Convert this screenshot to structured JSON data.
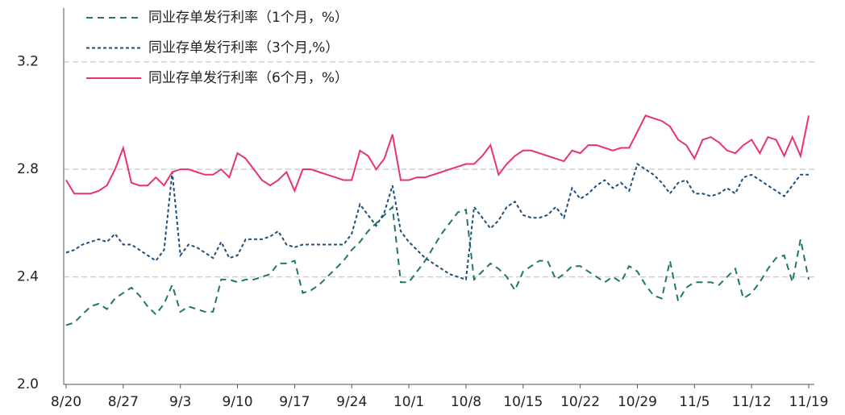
{
  "chart_data": {
    "type": "line",
    "categories": [
      "8/20",
      null,
      null,
      null,
      null,
      null,
      null,
      "8/27",
      null,
      null,
      null,
      null,
      null,
      null,
      "9/3",
      null,
      null,
      null,
      null,
      null,
      null,
      "9/10",
      null,
      null,
      null,
      null,
      null,
      null,
      "9/17",
      null,
      null,
      null,
      null,
      null,
      null,
      "9/24",
      null,
      null,
      null,
      null,
      null,
      null,
      "10/1",
      null,
      null,
      null,
      null,
      null,
      null,
      "10/8",
      null,
      null,
      null,
      null,
      null,
      null,
      "10/15",
      null,
      null,
      null,
      null,
      null,
      null,
      "10/22",
      null,
      null,
      null,
      null,
      null,
      null,
      "10/29",
      null,
      null,
      null,
      null,
      null,
      null,
      "11/5",
      null,
      null,
      null,
      null,
      null,
      null,
      "11/12",
      null,
      null,
      null,
      null,
      null,
      null,
      "11/19"
    ],
    "series": [
      {
        "name": "同业存单发行利率（1个月，%）",
        "color": "#1e7a5a",
        "dash": "8,6",
        "values": [
          2.22,
          2.23,
          2.26,
          2.29,
          2.3,
          2.28,
          2.32,
          2.34,
          2.36,
          2.33,
          2.29,
          2.26,
          2.3,
          2.37,
          2.27,
          2.29,
          2.28,
          2.27,
          2.27,
          2.39,
          2.39,
          2.38,
          2.39,
          2.39,
          2.4,
          2.41,
          2.45,
          2.45,
          2.46,
          2.34,
          2.35,
          2.37,
          2.4,
          2.43,
          2.46,
          2.5,
          2.53,
          2.57,
          2.6,
          2.63,
          2.66,
          2.38,
          2.38,
          2.42,
          2.46,
          2.51,
          2.56,
          2.6,
          2.64,
          2.65,
          2.39,
          2.42,
          2.45,
          2.43,
          2.4,
          2.35,
          2.42,
          2.44,
          2.46,
          2.46,
          2.39,
          2.41,
          2.44,
          2.44,
          2.42,
          2.4,
          2.38,
          2.4,
          2.38,
          2.44,
          2.42,
          2.37,
          2.33,
          2.32,
          2.46,
          2.31,
          2.36,
          2.38,
          2.38,
          2.38,
          2.37,
          2.4,
          2.43,
          2.32,
          2.34,
          2.38,
          2.43,
          2.47,
          2.48,
          2.38,
          2.54,
          2.39
        ]
      },
      {
        "name": "同业存单发行利率（3个月,%）",
        "color": "#1f4e79",
        "dash": "4,3",
        "values": [
          2.49,
          2.5,
          2.52,
          2.53,
          2.54,
          2.53,
          2.56,
          2.52,
          2.52,
          2.5,
          2.48,
          2.46,
          2.5,
          2.79,
          2.48,
          2.52,
          2.51,
          2.49,
          2.47,
          2.53,
          2.47,
          2.48,
          2.54,
          2.54,
          2.54,
          2.55,
          2.57,
          2.52,
          2.51,
          2.52,
          2.52,
          2.52,
          2.52,
          2.52,
          2.52,
          2.56,
          2.67,
          2.63,
          2.59,
          2.64,
          2.74,
          2.57,
          2.53,
          2.5,
          2.47,
          2.45,
          2.43,
          2.41,
          2.4,
          2.39,
          2.66,
          2.62,
          2.58,
          2.61,
          2.66,
          2.68,
          2.63,
          2.62,
          2.62,
          2.63,
          2.66,
          2.62,
          2.73,
          2.69,
          2.71,
          2.74,
          2.76,
          2.73,
          2.75,
          2.72,
          2.82,
          2.8,
          2.78,
          2.75,
          2.71,
          2.75,
          2.76,
          2.71,
          2.71,
          2.7,
          2.71,
          2.73,
          2.71,
          2.77,
          2.78,
          2.76,
          2.74,
          2.72,
          2.7,
          2.74,
          2.78,
          2.78
        ]
      },
      {
        "name": "同业存单发行利率（6个月，%）",
        "color": "#e8336b",
        "dash": "none",
        "values": [
          2.76,
          2.71,
          2.71,
          2.71,
          2.72,
          2.74,
          2.8,
          2.88,
          2.75,
          2.74,
          2.74,
          2.77,
          2.74,
          2.79,
          2.8,
          2.8,
          2.79,
          2.78,
          2.78,
          2.8,
          2.77,
          2.86,
          2.84,
          2.8,
          2.76,
          2.74,
          2.76,
          2.79,
          2.72,
          2.8,
          2.8,
          2.79,
          2.78,
          2.77,
          2.76,
          2.76,
          2.87,
          2.85,
          2.8,
          2.84,
          2.93,
          2.76,
          2.76,
          2.77,
          2.77,
          2.78,
          2.79,
          2.8,
          2.81,
          2.82,
          2.82,
          2.85,
          2.89,
          2.78,
          2.82,
          2.85,
          2.87,
          2.87,
          2.86,
          2.85,
          2.84,
          2.83,
          2.87,
          2.86,
          2.89,
          2.89,
          2.88,
          2.87,
          2.88,
          2.88,
          2.94,
          3.0,
          2.99,
          2.98,
          2.96,
          2.91,
          2.89,
          2.84,
          2.91,
          2.92,
          2.9,
          2.87,
          2.86,
          2.89,
          2.91,
          2.86,
          2.92,
          2.91,
          2.85,
          2.92,
          2.85,
          3.0
        ]
      }
    ],
    "ylim": [
      2.0,
      3.4
    ],
    "yticks": [
      {
        "value": 2.0,
        "label": "2.0"
      },
      2.4,
      2.8,
      3.2
    ],
    "grid": true
  }
}
